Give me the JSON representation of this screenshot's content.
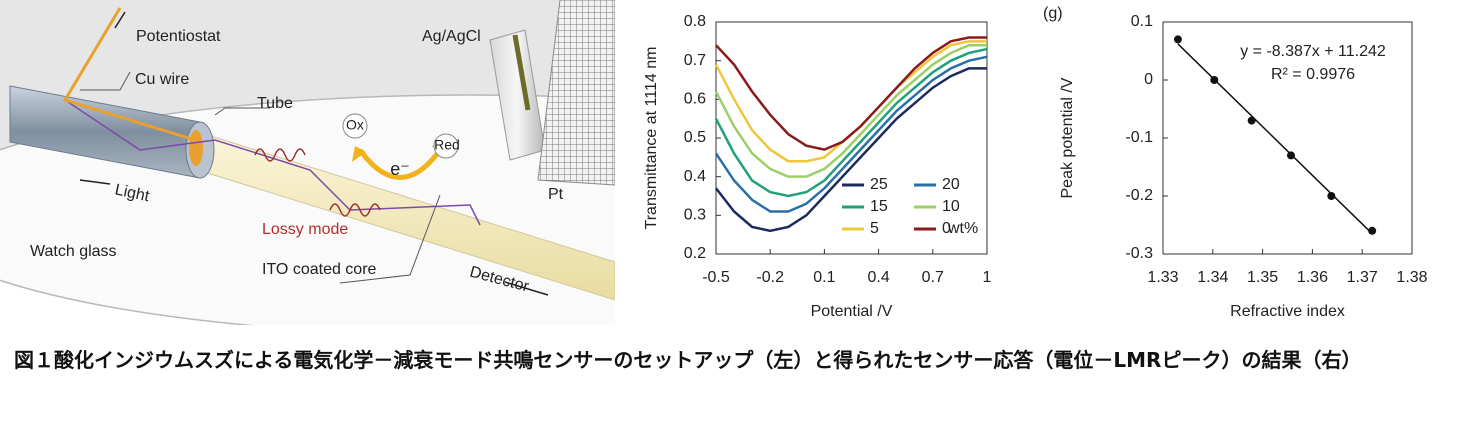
{
  "diagram": {
    "potentiostat": "Potentiostat",
    "cu_wire": "Cu wire",
    "tube": "Tube",
    "ag_agcl": "Ag/AgCl",
    "ox": "Ox",
    "red": "Red",
    "electron": "e⁻",
    "light": "Light",
    "lossy_mode": "Lossy mode",
    "watch_glass": "Watch glass",
    "ito_core": "ITO coated core",
    "detector": "Detector",
    "pt": "Pt"
  },
  "chart_data": [
    {
      "type": "line",
      "x_label": "Potential /V",
      "y_label": "Transmittance at 1114 nm",
      "x": [
        -0.5,
        -0.4,
        -0.3,
        -0.2,
        -0.1,
        0,
        0.1,
        0.2,
        0.3,
        0.4,
        0.5,
        0.6,
        0.7,
        0.8,
        0.9,
        1.0
      ],
      "series": [
        {
          "name": "25",
          "color": "#1d2b5c",
          "values": [
            0.37,
            0.31,
            0.27,
            0.26,
            0.27,
            0.3,
            0.35,
            0.4,
            0.45,
            0.5,
            0.55,
            0.59,
            0.63,
            0.66,
            0.68,
            0.68
          ]
        },
        {
          "name": "20",
          "color": "#2a6fa8",
          "values": [
            0.46,
            0.39,
            0.34,
            0.31,
            0.31,
            0.33,
            0.37,
            0.42,
            0.47,
            0.52,
            0.57,
            0.61,
            0.65,
            0.68,
            0.7,
            0.71
          ]
        },
        {
          "name": "15",
          "color": "#22a078",
          "values": [
            0.55,
            0.46,
            0.39,
            0.36,
            0.35,
            0.36,
            0.39,
            0.44,
            0.49,
            0.54,
            0.59,
            0.63,
            0.67,
            0.7,
            0.72,
            0.73
          ]
        },
        {
          "name": "10",
          "color": "#9ccf66",
          "values": [
            0.62,
            0.53,
            0.46,
            0.42,
            0.4,
            0.4,
            0.42,
            0.46,
            0.51,
            0.56,
            0.61,
            0.65,
            0.69,
            0.72,
            0.74,
            0.74
          ]
        },
        {
          "name": "5",
          "color": "#efc63a",
          "values": [
            0.69,
            0.6,
            0.52,
            0.47,
            0.44,
            0.44,
            0.45,
            0.49,
            0.53,
            0.58,
            0.63,
            0.67,
            0.71,
            0.74,
            0.75,
            0.75
          ]
        },
        {
          "name": "0",
          "color": "#8b1a1e",
          "values": [
            0.74,
            0.69,
            0.62,
            0.56,
            0.51,
            0.48,
            0.47,
            0.49,
            0.53,
            0.58,
            0.63,
            0.68,
            0.72,
            0.75,
            0.76,
            0.76
          ]
        }
      ],
      "legend_unit": "wt%",
      "xlim": [
        -0.5,
        1
      ],
      "xticks": [
        -0.5,
        -0.2,
        0.1,
        0.4,
        0.7,
        1
      ],
      "ylim": [
        0.2,
        0.8
      ],
      "yticks": [
        0.2,
        0.3,
        0.4,
        0.5,
        0.6,
        0.7,
        0.8
      ]
    },
    {
      "type": "scatter",
      "panel_label": "(g)",
      "x_label": "Refractive index",
      "y_label": "Peak potential /V",
      "x": [
        1.333,
        1.3403,
        1.3478,
        1.3557,
        1.3638,
        1.372
      ],
      "values": [
        0.07,
        0,
        -0.07,
        -0.13,
        -0.2,
        -0.26
      ],
      "color": "#111111",
      "trendline": {
        "slope": -8.387,
        "intercept": 11.242,
        "label": "y = -8.387x + 11.242"
      },
      "r_squared": {
        "value": 0.9976,
        "label": "R² = 0.9976"
      },
      "xlim": [
        1.33,
        1.38
      ],
      "xticks": [
        1.33,
        1.34,
        1.35,
        1.36,
        1.37,
        1.38
      ],
      "ylim": [
        -0.3,
        0.1
      ],
      "yticks": [
        -0.3,
        -0.2,
        -0.1,
        0,
        0.1
      ]
    }
  ],
  "caption": "図１酸化インジウムスズによる電気化学－減衰モード共鳴センサーのセットアップ（左）と得られたセンサー応答（電位－LMRピーク）の結果（右）"
}
